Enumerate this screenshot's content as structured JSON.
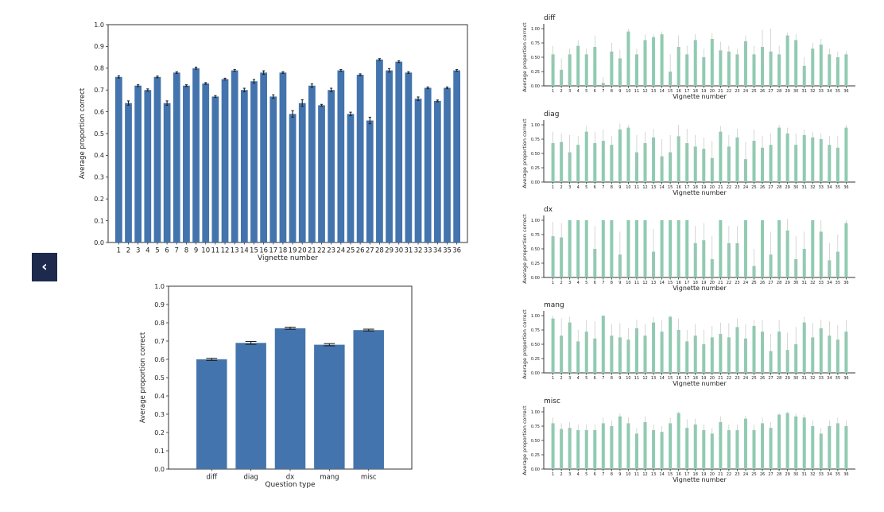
{
  "colors": {
    "main_bar": "#4374ad",
    "small_bar": "#8fcbb0",
    "error": "#222222"
  },
  "nav": {
    "back_icon": "chevron-left-icon",
    "back_glyph": "‹"
  },
  "chart_data": [
    {
      "id": "main",
      "type": "bar",
      "title": "",
      "xlabel": "Vignette number",
      "ylabel": "Average proportion correct",
      "ylim": [
        0,
        1
      ],
      "yticks": [
        0.0,
        0.1,
        0.2,
        0.3,
        0.4,
        0.5,
        0.6,
        0.7,
        0.8,
        0.9,
        1.0
      ],
      "ytick_labels": [
        "0.0",
        "0.1",
        "0.2",
        "0.3",
        "0.4",
        "0.5",
        "0.6",
        "0.7",
        "0.8",
        "0.9",
        "1.0"
      ],
      "grid": false,
      "categories": [
        "1",
        "2",
        "3",
        "4",
        "5",
        "6",
        "7",
        "8",
        "9",
        "10",
        "11",
        "12",
        "13",
        "14",
        "15",
        "16",
        "17",
        "18",
        "19",
        "20",
        "21",
        "22",
        "23",
        "24",
        "25",
        "26",
        "27",
        "28",
        "29",
        "30",
        "31",
        "32",
        "33",
        "34",
        "35",
        "36"
      ],
      "values": [
        0.76,
        0.64,
        0.72,
        0.7,
        0.76,
        0.64,
        0.78,
        0.72,
        0.8,
        0.73,
        0.67,
        0.75,
        0.79,
        0.7,
        0.74,
        0.78,
        0.67,
        0.78,
        0.59,
        0.64,
        0.72,
        0.63,
        0.7,
        0.79,
        0.59,
        0.77,
        0.56,
        0.84,
        0.79,
        0.83,
        0.78,
        0.66,
        0.71,
        0.65,
        0.71,
        0.79
      ],
      "errors": [
        0.005,
        0.01,
        0.004,
        0.005,
        0.004,
        0.01,
        0.004,
        0.004,
        0.005,
        0.004,
        0.004,
        0.004,
        0.004,
        0.008,
        0.008,
        0.008,
        0.008,
        0.004,
        0.015,
        0.015,
        0.008,
        0.004,
        0.008,
        0.004,
        0.008,
        0.004,
        0.015,
        0.004,
        0.008,
        0.004,
        0.004,
        0.008,
        0.004,
        0.004,
        0.004,
        0.004
      ]
    },
    {
      "id": "qtype",
      "type": "bar",
      "title": "",
      "xlabel": "Question type",
      "ylabel": "Average proportion correct",
      "ylim": [
        0,
        1
      ],
      "yticks": [
        0.0,
        0.1,
        0.2,
        0.3,
        0.4,
        0.5,
        0.6,
        0.7,
        0.8,
        0.9,
        1.0
      ],
      "ytick_labels": [
        "0.0",
        "0.1",
        "0.2",
        "0.3",
        "0.4",
        "0.5",
        "0.6",
        "0.7",
        "0.8",
        "0.9",
        "1.0"
      ],
      "grid": false,
      "categories": [
        "diff",
        "diag",
        "dx",
        "mang",
        "misc"
      ],
      "values": [
        0.6,
        0.69,
        0.77,
        0.68,
        0.76
      ],
      "errors": [
        0.006,
        0.008,
        0.006,
        0.006,
        0.005
      ]
    },
    {
      "id": "diff",
      "type": "bar",
      "title": "diff",
      "xlabel": "Vignette number",
      "ylabel": "Average proportion correct",
      "ylim": [
        0,
        1
      ],
      "yticks": [
        0,
        0.25,
        0.5,
        0.75,
        1.0
      ],
      "ytick_labels": [
        "0.00",
        "0.25",
        "0.50",
        "0.75",
        "1.00"
      ],
      "categories": [
        "1",
        "2",
        "3",
        "4",
        "5",
        "6",
        "7",
        "8",
        "9",
        "10",
        "11",
        "12",
        "13",
        "14",
        "15",
        "16",
        "17",
        "18",
        "19",
        "20",
        "21",
        "22",
        "23",
        "24",
        "25",
        "26",
        "27",
        "28",
        "29",
        "30",
        "31",
        "32",
        "33",
        "34",
        "35",
        "36"
      ],
      "values": [
        0.55,
        0.28,
        0.55,
        0.7,
        0.55,
        0.68,
        0.05,
        0.6,
        0.48,
        0.95,
        0.55,
        0.8,
        0.85,
        0.9,
        0.25,
        0.68,
        0.55,
        0.8,
        0.5,
        0.82,
        0.62,
        0.6,
        0.55,
        0.78,
        0.55,
        0.68,
        0.6,
        0.55,
        0.88,
        0.8,
        0.35,
        0.65,
        0.72,
        0.55,
        0.5,
        0.55
      ],
      "errors": [
        0.15,
        0.2,
        0.1,
        0.1,
        0.1,
        0.2,
        0.1,
        0.15,
        0.15,
        0.05,
        0.1,
        0.1,
        0.05,
        0.05,
        0.3,
        0.2,
        0.15,
        0.1,
        0.15,
        0.1,
        0.15,
        0.1,
        0.1,
        0.1,
        0.15,
        0.3,
        0.4,
        0.15,
        0.05,
        0.1,
        0.15,
        0.1,
        0.1,
        0.1,
        0.1,
        0.05
      ]
    },
    {
      "id": "diag",
      "type": "bar",
      "title": "diag",
      "xlabel": "Vignette number",
      "ylabel": "Average proportion correct",
      "ylim": [
        0,
        1
      ],
      "yticks": [
        0,
        0.25,
        0.5,
        0.75,
        1.0
      ],
      "ytick_labels": [
        "0.00",
        "0.25",
        "0.50",
        "0.75",
        "1.00"
      ],
      "categories": [
        "1",
        "2",
        "3",
        "4",
        "5",
        "6",
        "7",
        "8",
        "9",
        "10",
        "11",
        "12",
        "13",
        "14",
        "15",
        "16",
        "17",
        "18",
        "19",
        "20",
        "21",
        "22",
        "23",
        "24",
        "25",
        "26",
        "27",
        "28",
        "29",
        "30",
        "31",
        "32",
        "33",
        "34",
        "35",
        "36"
      ],
      "values": [
        0.68,
        0.7,
        0.52,
        0.65,
        0.88,
        0.68,
        0.72,
        0.65,
        0.92,
        0.95,
        0.52,
        0.68,
        0.78,
        0.45,
        0.52,
        0.8,
        0.68,
        0.62,
        0.58,
        0.42,
        0.88,
        0.62,
        0.78,
        0.4,
        0.72,
        0.6,
        0.65,
        0.95,
        0.85,
        0.65,
        0.82,
        0.78,
        0.75,
        0.65,
        0.6,
        0.95
      ],
      "errors": [
        0.2,
        0.15,
        0.3,
        0.15,
        0.1,
        0.2,
        0.2,
        0.15,
        0.1,
        0.05,
        0.3,
        0.2,
        0.15,
        0.3,
        0.3,
        0.2,
        0.25,
        0.2,
        0.2,
        0.3,
        0.1,
        0.2,
        0.15,
        0.3,
        0.2,
        0.2,
        0.2,
        0.05,
        0.1,
        0.2,
        0.1,
        0.1,
        0.1,
        0.15,
        0.2,
        0.05
      ]
    },
    {
      "id": "dx",
      "type": "bar",
      "title": "dx",
      "xlabel": "Vignette number",
      "ylabel": "Average proportion correct",
      "ylim": [
        0,
        1
      ],
      "yticks": [
        0,
        0.25,
        0.5,
        0.75,
        1.0
      ],
      "ytick_labels": [
        "0.00",
        "0.25",
        "0.50",
        "0.75",
        "1.00"
      ],
      "categories": [
        "1",
        "2",
        "3",
        "4",
        "5",
        "6",
        "7",
        "8",
        "9",
        "10",
        "11",
        "12",
        "13",
        "14",
        "15",
        "16",
        "17",
        "18",
        "19",
        "20",
        "21",
        "22",
        "23",
        "24",
        "25",
        "26",
        "27",
        "28",
        "29",
        "30",
        "31",
        "32",
        "33",
        "34",
        "35",
        "36"
      ],
      "values": [
        0.72,
        0.7,
        1.0,
        1.0,
        1.0,
        0.5,
        1.0,
        1.0,
        0.4,
        1.0,
        1.0,
        1.0,
        0.45,
        1.0,
        1.0,
        1.0,
        1.0,
        0.6,
        0.65,
        0.32,
        1.0,
        0.6,
        0.6,
        1.0,
        0.2,
        1.0,
        0.4,
        1.0,
        0.82,
        0.32,
        0.5,
        1.0,
        0.8,
        0.3,
        0.45,
        0.95
      ],
      "errors": [
        0.25,
        0.25,
        0,
        0,
        0,
        0.4,
        0,
        0,
        0.4,
        0,
        0,
        0,
        0.4,
        0,
        0,
        0,
        0,
        0.3,
        0.3,
        0.4,
        0,
        0.3,
        0.3,
        0,
        0.3,
        0,
        0.4,
        0,
        0.2,
        0.4,
        0.3,
        0,
        0.2,
        0.3,
        0.3,
        0.05
      ]
    },
    {
      "id": "mang",
      "type": "bar",
      "title": "mang",
      "xlabel": "Vignette number",
      "ylabel": "Average proportion correct",
      "ylim": [
        0,
        1
      ],
      "yticks": [
        0,
        0.25,
        0.5,
        0.75,
        1.0
      ],
      "ytick_labels": [
        "0.00",
        "0.25",
        "0.50",
        "0.75",
        "1.00"
      ],
      "categories": [
        "1",
        "2",
        "3",
        "4",
        "5",
        "6",
        "7",
        "8",
        "9",
        "10",
        "11",
        "12",
        "13",
        "14",
        "15",
        "16",
        "17",
        "18",
        "19",
        "20",
        "21",
        "22",
        "23",
        "24",
        "25",
        "26",
        "27",
        "28",
        "29",
        "30",
        "31",
        "32",
        "33",
        "34",
        "35",
        "36"
      ],
      "values": [
        0.95,
        0.65,
        0.88,
        0.55,
        0.72,
        0.6,
        1.0,
        0.65,
        0.62,
        0.58,
        0.78,
        0.65,
        0.88,
        0.72,
        0.98,
        0.75,
        0.55,
        0.65,
        0.5,
        0.62,
        0.68,
        0.62,
        0.8,
        0.6,
        0.82,
        0.72,
        0.38,
        0.72,
        0.4,
        0.5,
        0.88,
        0.62,
        0.78,
        0.65,
        0.58,
        0.72
      ],
      "errors": [
        0.05,
        0.3,
        0.1,
        0.2,
        0.2,
        0.3,
        0,
        0.2,
        0.25,
        0.2,
        0.15,
        0.2,
        0.1,
        0.2,
        0.02,
        0.2,
        0.2,
        0.2,
        0.25,
        0.2,
        0.2,
        0.25,
        0.15,
        0.25,
        0.1,
        0.2,
        0.3,
        0.2,
        0.3,
        0.3,
        0.1,
        0.25,
        0.15,
        0.25,
        0.25,
        0.2
      ]
    },
    {
      "id": "misc",
      "type": "bar",
      "title": "misc",
      "xlabel": "Vignette number",
      "ylabel": "Average proportion correct",
      "ylim": [
        0,
        1
      ],
      "yticks": [
        0,
        0.25,
        0.5,
        0.75,
        1.0
      ],
      "ytick_labels": [
        "0.00",
        "0.25",
        "0.50",
        "0.75",
        "1.00"
      ],
      "categories": [
        "1",
        "2",
        "3",
        "4",
        "5",
        "6",
        "7",
        "8",
        "9",
        "10",
        "11",
        "12",
        "13",
        "14",
        "15",
        "16",
        "17",
        "18",
        "19",
        "20",
        "21",
        "22",
        "23",
        "24",
        "25",
        "26",
        "27",
        "28",
        "29",
        "30",
        "31",
        "32",
        "33",
        "34",
        "35",
        "36"
      ],
      "values": [
        0.8,
        0.7,
        0.72,
        0.68,
        0.68,
        0.68,
        0.8,
        0.75,
        0.92,
        0.8,
        0.62,
        0.82,
        0.68,
        0.65,
        0.8,
        0.98,
        0.72,
        0.78,
        0.68,
        0.62,
        0.82,
        0.68,
        0.68,
        0.88,
        0.68,
        0.8,
        0.72,
        0.95,
        0.98,
        0.92,
        0.9,
        0.75,
        0.62,
        0.75,
        0.8,
        0.75
      ],
      "errors": [
        0.1,
        0.1,
        0.1,
        0.1,
        0.1,
        0.1,
        0.1,
        0.1,
        0.05,
        0.1,
        0.1,
        0.1,
        0.1,
        0.1,
        0.1,
        0.02,
        0.15,
        0.1,
        0.1,
        0.1,
        0.1,
        0.1,
        0.1,
        0.05,
        0.1,
        0.1,
        0.1,
        0.03,
        0.02,
        0.05,
        0.05,
        0.1,
        0.1,
        0.1,
        0.1,
        0.1
      ]
    }
  ]
}
